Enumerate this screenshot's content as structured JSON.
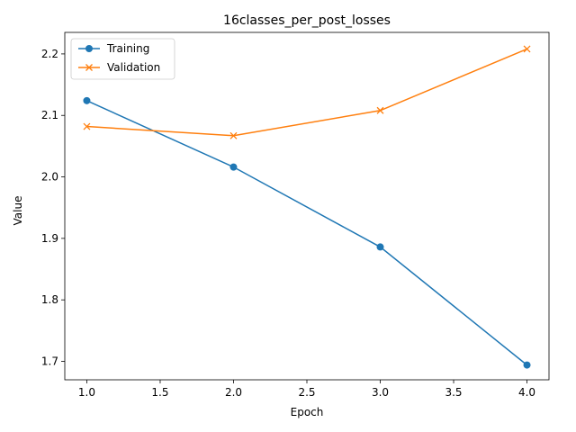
{
  "chart_data": {
    "type": "line",
    "title": "16classes_per_post_losses",
    "xlabel": "Epoch",
    "ylabel": "Value",
    "xlim": [
      0.85,
      4.15
    ],
    "ylim": [
      1.67,
      2.235
    ],
    "xticks": [
      1.0,
      1.5,
      2.0,
      2.5,
      3.0,
      3.5,
      4.0
    ],
    "xtick_labels": [
      "1.0",
      "1.5",
      "2.0",
      "2.5",
      "3.0",
      "3.5",
      "4.0"
    ],
    "yticks": [
      1.7,
      1.8,
      1.9,
      2.0,
      2.1,
      2.2
    ],
    "ytick_labels": [
      "1.7",
      "1.8",
      "1.9",
      "2.0",
      "2.1",
      "2.2"
    ],
    "grid": false,
    "legend_position": "top-left",
    "x": [
      1,
      2,
      3,
      4
    ],
    "series": [
      {
        "name": "Training",
        "values": [
          2.124,
          2.016,
          1.886,
          1.694
        ],
        "color": "#1f77b4",
        "marker": "circle"
      },
      {
        "name": "Validation",
        "values": [
          2.082,
          2.067,
          2.108,
          2.208
        ],
        "color": "#ff7f0e",
        "marker": "x"
      }
    ]
  }
}
